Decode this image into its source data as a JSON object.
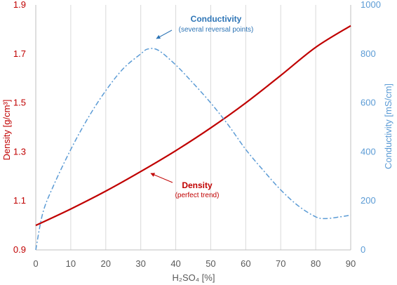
{
  "chart_data": {
    "type": "line",
    "xlabel": "H₂SO₄ [%]",
    "xlim": [
      0,
      90
    ],
    "x_ticks": [
      0,
      10,
      20,
      30,
      40,
      50,
      60,
      70,
      80,
      90
    ],
    "y_left": {
      "label": "Density [g/cm³]",
      "lim": [
        0.9,
        1.9
      ],
      "ticks": [
        "0.9",
        "1.1",
        "1.3",
        "1.5",
        "1.7",
        "1.9"
      ],
      "color": "#c00000"
    },
    "y_right": {
      "label": "Conductivity [mS/cm]",
      "lim": [
        0,
        1000
      ],
      "ticks": [
        "0",
        "200",
        "400",
        "600",
        "800",
        "1000"
      ],
      "color": "#5b9bd5"
    },
    "grid": "vertical",
    "series": [
      {
        "name": "Density",
        "axis": "left",
        "style": "solid",
        "color": "#c00000",
        "x": [
          0,
          10,
          20,
          30,
          40,
          50,
          60,
          70,
          80,
          90
        ],
        "y": [
          1.0,
          1.067,
          1.14,
          1.22,
          1.305,
          1.398,
          1.5,
          1.612,
          1.727,
          1.815
        ]
      },
      {
        "name": "Conductivity",
        "axis": "right",
        "style": "dash-dot",
        "color": "#5b9bd5",
        "x": [
          0,
          2,
          5,
          10,
          15,
          20,
          25,
          30,
          32,
          35,
          40,
          45,
          50,
          55,
          60,
          65,
          70,
          75,
          80,
          83,
          87,
          90
        ],
        "y": [
          0,
          150,
          260,
          410,
          540,
          650,
          740,
          800,
          820,
          815,
          755,
          680,
          600,
          510,
          410,
          325,
          245,
          180,
          135,
          128,
          135,
          142
        ]
      }
    ],
    "annotations": [
      {
        "title": "Conductivity",
        "subtitle": "(several reversal points)",
        "color": "#2e75b6"
      },
      {
        "title": "Density",
        "subtitle": "(perfect trend)",
        "color": "#c00000"
      }
    ]
  }
}
